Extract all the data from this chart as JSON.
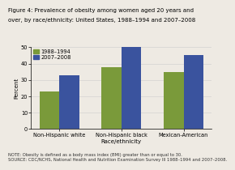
{
  "title_line1": "Figure 4: Prevalence of obesity among women aged 20 years and",
  "title_line2": "over, by race/ethnicity: United States, 1988–1994 and 2007–2008",
  "categories": [
    "Non-Hispanic white",
    "Non-Hispanic black",
    "Mexican-American"
  ],
  "series": [
    {
      "label": "1988–1994",
      "values": [
        23,
        38,
        35
      ],
      "color": "#7a9a3a"
    },
    {
      "label": "2007–2008",
      "values": [
        33,
        50,
        45
      ],
      "color": "#3a539e"
    }
  ],
  "xlabel": "Race/ethnicity",
  "ylabel": "Percent",
  "ylim": [
    0,
    50
  ],
  "yticks": [
    0,
    10,
    20,
    30,
    40,
    50
  ],
  "note_line1": "NOTE: Obesity is defined as a body mass index (BMI) greater than or equal to 30.",
  "note_line2": "SOURCE: CDC/NCHS, National Health and Nutrition Examination Survey III 1988–1994 and 2007–2008.",
  "background_color": "#eeeae3",
  "bar_width": 0.32,
  "title_fontsize": 5.0,
  "axis_label_fontsize": 5.0,
  "tick_fontsize": 4.8,
  "legend_fontsize": 4.8,
  "note_fontsize": 3.8
}
